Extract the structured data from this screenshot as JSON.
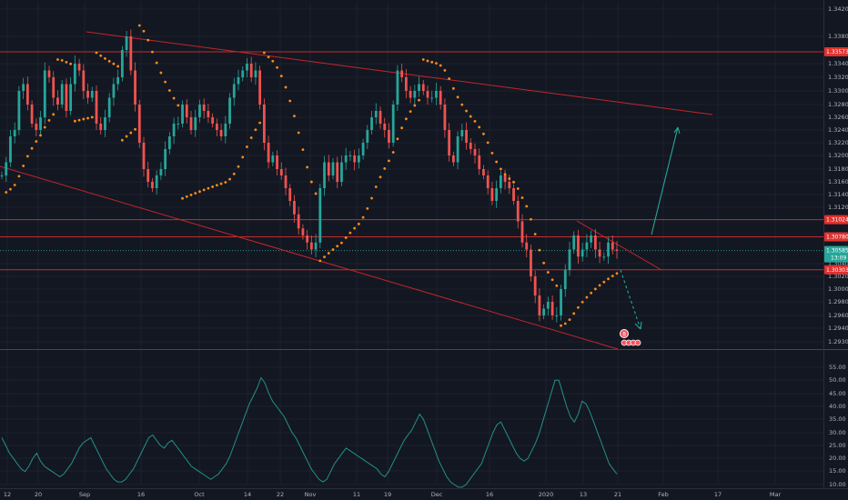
{
  "chart_data": [
    {
      "type": "candlestick",
      "title": "",
      "ylim": [
        1.292,
        1.342
      ],
      "y_ticks": [
        "1.34200",
        "1.33800",
        "1.33400",
        "1.33200",
        "1.33000",
        "1.32800",
        "1.32600",
        "1.32400",
        "1.32200",
        "1.32000",
        "1.31800",
        "1.31600",
        "1.31400",
        "1.31200",
        "1.30400",
        "1.30200",
        "1.30000",
        "1.29800",
        "1.29600",
        "1.29400",
        "1.29300"
      ],
      "x_ticks": [
        "12",
        "20",
        "Sep",
        "16",
        "Oct",
        "14",
        "22",
        "Nov",
        "11",
        "19",
        "Dec",
        "16",
        "2020",
        "13",
        "21",
        "Feb",
        "17",
        "Mar"
      ],
      "price_levels": [
        {
          "label": "1.33573",
          "value": 1.33573,
          "color": "#e0312e"
        },
        {
          "label": "1.31024",
          "value": 1.31024,
          "color": "#e0312e"
        },
        {
          "label": "1.30780",
          "value": 1.3078,
          "color": "#e0312e"
        },
        {
          "label": "1.30303",
          "value": 1.30303,
          "color": "#e0312e"
        }
      ],
      "current_price": {
        "label": "1.30585",
        "countdown": "13:09",
        "value": 1.30585,
        "color": "#26a69a"
      },
      "close_series": [
        1.317,
        1.319,
        1.323,
        1.324,
        1.33,
        1.331,
        1.328,
        1.325,
        1.324,
        1.326,
        1.333,
        1.332,
        1.329,
        1.328,
        1.331,
        1.327,
        1.331,
        1.334,
        1.333,
        1.33,
        1.329,
        1.33,
        1.325,
        1.324,
        1.326,
        1.329,
        1.331,
        1.332,
        1.336,
        1.338,
        1.333,
        1.328,
        1.322,
        1.318,
        1.316,
        1.315,
        1.317,
        1.318,
        1.321,
        1.323,
        1.325,
        1.325,
        1.328,
        1.326,
        1.324,
        1.326,
        1.328,
        1.327,
        1.326,
        1.325,
        1.324,
        1.323,
        1.325,
        1.329,
        1.331,
        1.332,
        1.333,
        1.334,
        1.332,
        1.333,
        1.328,
        1.322,
        1.319,
        1.32,
        1.318,
        1.317,
        1.315,
        1.313,
        1.311,
        1.309,
        1.308,
        1.307,
        1.306,
        1.307,
        1.315,
        1.319,
        1.317,
        1.319,
        1.316,
        1.319,
        1.32,
        1.32,
        1.319,
        1.32,
        1.322,
        1.324,
        1.326,
        1.327,
        1.325,
        1.324,
        1.322,
        1.328,
        1.333,
        1.332,
        1.33,
        1.329,
        1.33,
        1.331,
        1.33,
        1.329,
        1.329,
        1.33,
        1.328,
        1.324,
        1.32,
        1.319,
        1.323,
        1.324,
        1.322,
        1.321,
        1.32,
        1.318,
        1.317,
        1.315,
        1.313,
        1.315,
        1.317,
        1.316,
        1.315,
        1.313,
        1.31,
        1.307,
        1.306,
        1.302,
        1.299,
        1.296,
        1.297,
        1.298,
        1.296,
        1.296,
        1.3,
        1.303,
        1.306,
        1.308,
        1.305,
        1.306,
        1.307,
        1.308,
        1.306,
        1.305,
        1.305,
        1.307,
        1.306,
        1.3058
      ],
      "indicator": {
        "y_ticks": [
          "55.00",
          "50.00",
          "45.00",
          "40.00",
          "35.00",
          "30.00",
          "25.00",
          "20.00",
          "15.00",
          "10.00"
        ],
        "ylim": [
          5,
          58
        ],
        "values": [
          28,
          25,
          22,
          20,
          18,
          16,
          15,
          17,
          20,
          22,
          19,
          17,
          16,
          15,
          14,
          13,
          14,
          16,
          18,
          21,
          24,
          26,
          27,
          28,
          25,
          22,
          19,
          16,
          14,
          12,
          11,
          11,
          12,
          14,
          16,
          19,
          22,
          25,
          28,
          29,
          27,
          25,
          24,
          26,
          27,
          25,
          23,
          21,
          19,
          17,
          16,
          15,
          14,
          13,
          12,
          13,
          14,
          16,
          18,
          21,
          25,
          29,
          33,
          37,
          41,
          44,
          47,
          51,
          49,
          45,
          42,
          40,
          38,
          36,
          33,
          30,
          28,
          25,
          22,
          19,
          16,
          14,
          12,
          11,
          12,
          15,
          18,
          20,
          22,
          24,
          23,
          22,
          21,
          20,
          19,
          18,
          17,
          16,
          14,
          13,
          15,
          18,
          21,
          24,
          27,
          29,
          31,
          34,
          37,
          35,
          31,
          27,
          23,
          19,
          16,
          13,
          11,
          10,
          9,
          9,
          10,
          12,
          14,
          16,
          18,
          22,
          26,
          30,
          33,
          34,
          31,
          28,
          25,
          22,
          20,
          19,
          20,
          23,
          26,
          30,
          35,
          40,
          45,
          50,
          50,
          45,
          40,
          36,
          34,
          37,
          42,
          41,
          38,
          34,
          30,
          26,
          22,
          18,
          16,
          14
        ]
      },
      "annotations": [
        {
          "label": "8"
        }
      ]
    }
  ]
}
